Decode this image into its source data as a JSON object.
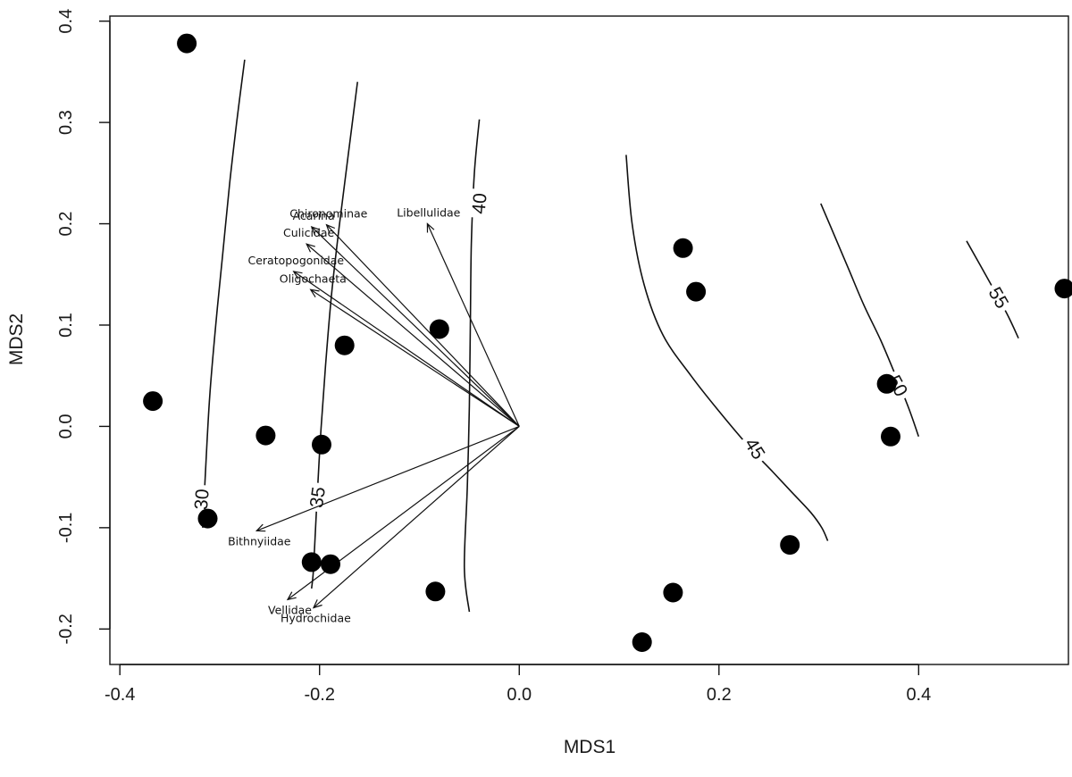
{
  "chart_data": {
    "type": "scatter",
    "title": "",
    "xlabel": "MDS1",
    "ylabel": "MDS2",
    "xlim": [
      -0.41,
      0.55
    ],
    "ylim": [
      -0.235,
      0.405
    ],
    "xticks": [
      -0.4,
      -0.2,
      0.0,
      0.2,
      0.4
    ],
    "yticks": [
      -0.2,
      -0.1,
      0.0,
      0.1,
      0.2,
      0.3,
      0.4
    ],
    "xtick_labels": [
      "-0.4",
      "-0.2",
      "0.0",
      "0.2",
      "0.4"
    ],
    "ytick_labels": [
      "-0.2",
      "-0.1",
      "0.0",
      "0.1",
      "0.2",
      "0.3",
      "0.4"
    ],
    "grid": false,
    "points": [
      {
        "x": -0.333,
        "y": 0.378
      },
      {
        "x": -0.367,
        "y": 0.025
      },
      {
        "x": -0.254,
        "y": -0.009
      },
      {
        "x": -0.312,
        "y": -0.091
      },
      {
        "x": -0.198,
        "y": -0.018
      },
      {
        "x": -0.175,
        "y": 0.08
      },
      {
        "x": -0.08,
        "y": 0.096
      },
      {
        "x": -0.208,
        "y": -0.134
      },
      {
        "x": -0.189,
        "y": -0.136
      },
      {
        "x": -0.084,
        "y": -0.163
      },
      {
        "x": 0.164,
        "y": 0.176
      },
      {
        "x": 0.177,
        "y": 0.133
      },
      {
        "x": 0.368,
        "y": 0.042
      },
      {
        "x": 0.372,
        "y": -0.01
      },
      {
        "x": 0.271,
        "y": -0.117
      },
      {
        "x": 0.154,
        "y": -0.164
      },
      {
        "x": 0.123,
        "y": -0.213
      },
      {
        "x": 0.546,
        "y": 0.136
      }
    ],
    "vectors": [
      {
        "label": "Chironominae",
        "x": -0.193,
        "y": 0.199
      },
      {
        "label": "Acarina",
        "x": -0.208,
        "y": 0.197
      },
      {
        "label": "Culicidae",
        "x": -0.213,
        "y": 0.18
      },
      {
        "label": "Ceratopogonidae",
        "x": -0.226,
        "y": 0.153
      },
      {
        "label": "Oligochaeta",
        "x": -0.209,
        "y": 0.135
      },
      {
        "label": "Libellulidae",
        "x": -0.092,
        "y": 0.2
      },
      {
        "label": "Bithnyiidae",
        "x": -0.263,
        "y": -0.103
      },
      {
        "label": "Vellidae",
        "x": -0.232,
        "y": -0.171
      },
      {
        "label": "Hydrochidae",
        "x": -0.206,
        "y": -0.179
      }
    ],
    "contours": [
      {
        "level": "30",
        "points": [
          [
            -0.275,
            0.362
          ],
          [
            -0.283,
            0.3
          ],
          [
            -0.29,
            0.24
          ],
          [
            -0.297,
            0.17
          ],
          [
            -0.304,
            0.1
          ],
          [
            -0.31,
            0.03
          ],
          [
            -0.314,
            -0.04
          ],
          [
            -0.317,
            -0.1
          ]
        ]
      },
      {
        "level": "35",
        "points": [
          [
            -0.162,
            0.34
          ],
          [
            -0.171,
            0.27
          ],
          [
            -0.18,
            0.2
          ],
          [
            -0.188,
            0.13
          ],
          [
            -0.194,
            0.06
          ],
          [
            -0.199,
            -0.01
          ],
          [
            -0.203,
            -0.08
          ],
          [
            -0.206,
            -0.14
          ],
          [
            -0.208,
            -0.16
          ]
        ]
      },
      {
        "level": "40",
        "points": [
          [
            -0.04,
            0.303
          ],
          [
            -0.045,
            0.25
          ],
          [
            -0.048,
            0.18
          ],
          [
            -0.049,
            0.1
          ],
          [
            -0.05,
            0.02
          ],
          [
            -0.052,
            -0.06
          ],
          [
            -0.055,
            -0.14
          ],
          [
            -0.05,
            -0.183
          ]
        ]
      },
      {
        "level": "45",
        "points": [
          [
            0.107,
            0.268
          ],
          [
            0.113,
            0.2
          ],
          [
            0.125,
            0.14
          ],
          [
            0.144,
            0.09
          ],
          [
            0.172,
            0.05
          ],
          [
            0.2,
            0.015
          ],
          [
            0.23,
            -0.02
          ],
          [
            0.254,
            -0.045
          ],
          [
            0.273,
            -0.065
          ],
          [
            0.292,
            -0.085
          ],
          [
            0.303,
            -0.1
          ],
          [
            0.309,
            -0.113
          ]
        ]
      },
      {
        "level": "50",
        "points": [
          [
            0.302,
            0.22
          ],
          [
            0.315,
            0.19
          ],
          [
            0.33,
            0.155
          ],
          [
            0.345,
            0.12
          ],
          [
            0.362,
            0.085
          ],
          [
            0.377,
            0.05
          ],
          [
            0.39,
            0.018
          ],
          [
            0.4,
            -0.01
          ]
        ]
      },
      {
        "level": "55",
        "points": [
          [
            0.448,
            0.183
          ],
          [
            0.468,
            0.148
          ],
          [
            0.488,
            0.112
          ],
          [
            0.5,
            0.087
          ]
        ]
      }
    ],
    "contour_labels": [
      {
        "text": "30",
        "x": -0.318,
        "y": -0.072,
        "rot": -85
      },
      {
        "text": "35",
        "x": -0.202,
        "y": -0.07,
        "rot": -82
      },
      {
        "text": "40",
        "x": -0.04,
        "y": 0.22,
        "rot": -85
      },
      {
        "text": "45",
        "x": 0.236,
        "y": -0.022,
        "rot": 58
      },
      {
        "text": "50",
        "x": 0.379,
        "y": 0.04,
        "rot": 62
      },
      {
        "text": "55",
        "x": 0.48,
        "y": 0.127,
        "rot": 60
      }
    ]
  }
}
